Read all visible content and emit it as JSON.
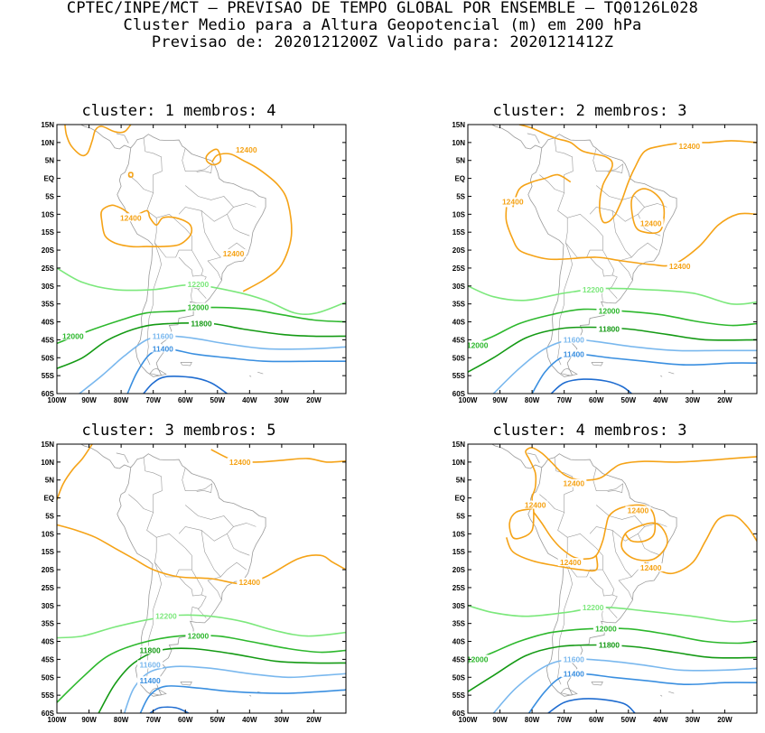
{
  "header": {
    "line1": "CPTEC/INPE/MCT – PREVISAO DE TEMPO GLOBAL POR ENSEMBLE – TQ0126L028",
    "line2": "Cluster Medio para a Altura Geopotencial (m) em 200 hPa",
    "line3": "Previsao de: 2020121200Z   Valido para: 2020121412Z"
  },
  "axes": {
    "lat_labels": [
      "15N",
      "10N",
      "5N",
      "EQ",
      "5S",
      "10S",
      "15S",
      "20S",
      "25S",
      "30S",
      "35S",
      "40S",
      "45S",
      "50S",
      "55S",
      "60S"
    ],
    "lon_labels": [
      "100W",
      "90W",
      "80W",
      "70W",
      "60W",
      "50W",
      "40W",
      "30W",
      "20W"
    ]
  },
  "colors": {
    "c12400": "#f5a317",
    "c12200": "#7ce87c",
    "c12000": "#2db82d",
    "c11800": "#149a14",
    "c11600": "#7ab8ee",
    "c11400": "#3a8fe0",
    "c11200": "#1f6cd0",
    "coast": "#9a9a9a"
  },
  "panels": [
    {
      "title": "cluster: 1   membros: 4",
      "labels": [
        {
          "text": "12400",
          "lon": -41,
          "lat": 8,
          "cls": "c12400"
        },
        {
          "text": "12400",
          "lon": -77,
          "lat": -11,
          "cls": "c12400"
        },
        {
          "text": "12400",
          "lon": -45,
          "lat": -21,
          "cls": "c12400"
        },
        {
          "text": "12200",
          "lon": -56,
          "lat": -29.5,
          "cls": "c12200"
        },
        {
          "text": "12000",
          "lon": -56,
          "lat": -36,
          "cls": "c12000"
        },
        {
          "text": "11800",
          "lon": -55,
          "lat": -40.5,
          "cls": "c11800"
        },
        {
          "text": "12000",
          "lon": -95,
          "lat": -44,
          "cls": "c12000"
        },
        {
          "text": "11600",
          "lon": -67,
          "lat": -44,
          "cls": "c11600"
        },
        {
          "text": "11400",
          "lon": -67,
          "lat": -47.5,
          "cls": "c11400"
        }
      ]
    },
    {
      "title": "cluster: 2   membros: 3",
      "labels": [
        {
          "text": "12400",
          "lon": -31,
          "lat": 9,
          "cls": "c12400"
        },
        {
          "text": "12400",
          "lon": -86,
          "lat": -6.5,
          "cls": "c12400"
        },
        {
          "text": "12400",
          "lon": -43,
          "lat": -12.5,
          "cls": "c12400"
        },
        {
          "text": "12400",
          "lon": -34,
          "lat": -24.5,
          "cls": "c12400"
        },
        {
          "text": "12200",
          "lon": -61,
          "lat": -31,
          "cls": "c12200"
        },
        {
          "text": "12000",
          "lon": -56,
          "lat": -37,
          "cls": "c12000"
        },
        {
          "text": "11800",
          "lon": -56,
          "lat": -42,
          "cls": "c11800"
        },
        {
          "text": "12000",
          "lon": -97,
          "lat": -46.5,
          "cls": "c12000"
        },
        {
          "text": "11600",
          "lon": -67,
          "lat": -45,
          "cls": "c11600"
        },
        {
          "text": "11400",
          "lon": -67,
          "lat": -49,
          "cls": "c11400"
        }
      ]
    },
    {
      "title": "cluster: 3   membros: 5",
      "labels": [
        {
          "text": "12400",
          "lon": -43,
          "lat": 10,
          "cls": "c12400"
        },
        {
          "text": "12400",
          "lon": -40,
          "lat": -23.5,
          "cls": "c12400"
        },
        {
          "text": "12200",
          "lon": -66,
          "lat": -33,
          "cls": "c12200"
        },
        {
          "text": "12000",
          "lon": -56,
          "lat": -38.5,
          "cls": "c12000"
        },
        {
          "text": "11800",
          "lon": -71,
          "lat": -42.5,
          "cls": "c11800"
        },
        {
          "text": "11600",
          "lon": -71,
          "lat": -46.5,
          "cls": "c11600"
        },
        {
          "text": "11400",
          "lon": -71,
          "lat": -51,
          "cls": "c11400"
        }
      ]
    },
    {
      "title": "cluster: 4   membros: 3",
      "labels": [
        {
          "text": "12400",
          "lon": -67,
          "lat": 4,
          "cls": "c12400"
        },
        {
          "text": "12400",
          "lon": -79,
          "lat": -2,
          "cls": "c12400"
        },
        {
          "text": "12400",
          "lon": -47,
          "lat": -3.5,
          "cls": "c12400"
        },
        {
          "text": "12400",
          "lon": -68,
          "lat": -18,
          "cls": "c12400"
        },
        {
          "text": "12400",
          "lon": -43,
          "lat": -19.5,
          "cls": "c12400"
        },
        {
          "text": "12200",
          "lon": -61,
          "lat": -30.5,
          "cls": "c12200"
        },
        {
          "text": "12000",
          "lon": -57,
          "lat": -36.5,
          "cls": "c12000"
        },
        {
          "text": "11800",
          "lon": -56,
          "lat": -41,
          "cls": "c11800"
        },
        {
          "text": "12000",
          "lon": -97,
          "lat": -45,
          "cls": "c12000"
        },
        {
          "text": "11600",
          "lon": -67,
          "lat": -45,
          "cls": "c11600"
        },
        {
          "text": "11400",
          "lon": -67,
          "lat": -49,
          "cls": "c11400"
        }
      ]
    }
  ]
}
